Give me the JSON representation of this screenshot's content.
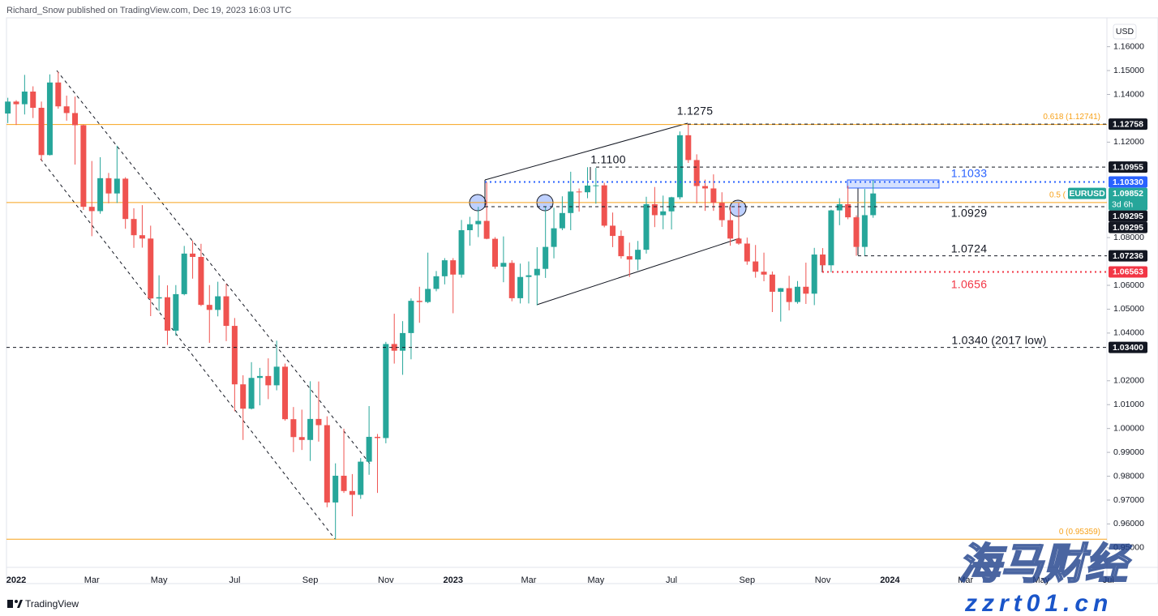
{
  "header": "Richard_Snow published on TradingView.com, Dec 19, 2023 16:03 UTC",
  "footer": "TradingView",
  "watermark": {
    "name": "海马财经",
    "site": "zzrt01.cn"
  },
  "chart_data": {
    "type": "candlestick",
    "currency": "USD",
    "up_color": "#26a69a",
    "down_color": "#ef5350",
    "fib_color": "#f7a21b",
    "grid": false,
    "ylim": [
      0.9418,
      1.1721
    ],
    "yticks": [
      {
        "value": 1.16,
        "label": "1.16000"
      },
      {
        "value": 1.15,
        "label": "1.15000"
      },
      {
        "value": 1.14,
        "label": "1.14000"
      },
      {
        "value": 1.12,
        "label": "1.12000"
      },
      {
        "value": 1.08,
        "label": "1.08000"
      },
      {
        "value": 1.06,
        "label": "1.06000"
      },
      {
        "value": 1.05,
        "label": "1.05000"
      },
      {
        "value": 1.04,
        "label": "1.04000"
      },
      {
        "value": 1.02,
        "label": "1.02000"
      },
      {
        "value": 1.01,
        "label": "1.01000"
      },
      {
        "value": 1.0,
        "label": "1.00000"
      },
      {
        "value": 0.99,
        "label": "0.99000"
      },
      {
        "value": 0.98,
        "label": "0.98000"
      },
      {
        "value": 0.97,
        "label": "0.97000"
      },
      {
        "value": 0.96,
        "label": "0.96000"
      },
      {
        "value": 0.95,
        "label": "0.95000"
      }
    ],
    "categories": [
      null,
      "2022",
      null,
      null,
      null,
      null,
      null,
      null,
      null,
      null,
      "Mar",
      null,
      null,
      null,
      null,
      null,
      null,
      null,
      "May",
      null,
      null,
      null,
      null,
      null,
      null,
      null,
      null,
      "Jul",
      null,
      null,
      null,
      null,
      null,
      null,
      null,
      null,
      "Sep",
      null,
      null,
      null,
      null,
      null,
      null,
      null,
      null,
      "Nov",
      null,
      null,
      null,
      null,
      null,
      null,
      null,
      "2023",
      null,
      null,
      null,
      null,
      null,
      null,
      null,
      null,
      "Mar",
      null,
      null,
      null,
      null,
      null,
      null,
      null,
      "May",
      null,
      null,
      null,
      null,
      null,
      null,
      null,
      null,
      "Jul",
      null,
      null,
      null,
      null,
      null,
      null,
      null,
      null,
      "Sep",
      null,
      null,
      null,
      null,
      null,
      null,
      null,
      null,
      "Nov",
      null,
      null,
      null,
      null,
      null,
      null,
      null,
      "2024",
      null,
      null,
      null,
      null,
      null,
      null,
      null,
      null,
      "Mar",
      null,
      null,
      null,
      null,
      null,
      null,
      null,
      null,
      "May",
      null,
      null,
      null,
      null,
      null,
      null,
      null,
      "Jul"
    ],
    "open": [
      1.132,
      1.137,
      1.1359,
      1.1412,
      1.1344,
      1.1146,
      1.145,
      1.135,
      1.1322,
      1.1271,
      1.0929,
      1.0911,
      1.1049,
      1.0985,
      1.1047,
      1.0878,
      1.081,
      1.0796,
      1.0545,
      1.055,
      1.041,
      1.0563,
      1.0733,
      1.0719,
      1.0518,
      1.0497,
      1.0554,
      1.043,
      1.0185,
      1.0083,
      1.0212,
      1.022,
      1.0181,
      1.0259,
      1.0039,
      0.9964,
      0.9952,
      1.004,
      1.0014,
      0.969,
      0.9802,
      0.9738,
      0.9722,
      0.9861,
      0.9965,
      0.996,
      1.0354,
      1.0326,
      1.04,
      1.0535,
      1.053,
      1.0585,
      1.0638,
      1.0705,
      1.0645,
      1.0831,
      1.0856,
      1.087,
      1.0795,
      1.0678,
      1.0694,
      1.0546,
      1.0635,
      1.0642,
      1.0669,
      1.0761,
      1.0839,
      1.0903,
      1.0993,
      1.099,
      1.1018,
      1.1019,
      1.085,
      1.0807,
      1.0722,
      1.0708,
      1.0749,
      1.094,
      1.0894,
      1.091,
      1.0969,
      1.1229,
      1.1125,
      1.1016,
      1.1006,
      1.0946,
      1.0873,
      1.0796,
      1.0775,
      1.07,
      1.0657,
      1.0645,
      1.0573,
      1.0588,
      1.053,
      1.0594,
      1.0565,
      1.0729,
      1.0684,
      1.0914,
      1.094,
      1.0885,
      1.0761,
      1.0894,
      null,
      null,
      null,
      null,
      null,
      null,
      null,
      null,
      null,
      null,
      null,
      null,
      null,
      null,
      null,
      null,
      null,
      null,
      null,
      null,
      null,
      null,
      null,
      null,
      null,
      null,
      null,
      null
    ],
    "high": [
      1.1386,
      1.1376,
      1.1482,
      1.1434,
      1.137,
      1.1484,
      1.1495,
      1.1395,
      1.1391,
      1.1274,
      1.1121,
      1.1137,
      1.1071,
      1.1185,
      1.1053,
      1.0923,
      1.0936,
      1.085,
      1.0642,
      1.06,
      1.0601,
      1.0765,
      1.0787,
      1.0774,
      1.0601,
      1.0615,
      1.0606,
      1.0463,
      1.0223,
      1.0278,
      1.0254,
      1.0294,
      1.0368,
      1.0272,
      1.009,
      1.0079,
      1.0198,
      1.0197,
      1.0051,
      0.9854,
      0.9999,
      0.9809,
      0.9876,
      1.0094,
      0.9977,
      1.0363,
      1.0481,
      1.045,
      1.0545,
      1.0594,
      1.0737,
      1.066,
      1.0714,
      1.0714,
      1.0874,
      1.0887,
      1.0929,
      1.1033,
      1.0802,
      1.0805,
      1.0705,
      1.0691,
      1.07,
      1.076,
      1.093,
      1.0925,
      1.0973,
      1.1076,
      1.1006,
      1.1095,
      1.1092,
      1.103,
      1.0905,
      1.083,
      1.0779,
      1.0786,
      1.0971,
      1.1012,
      1.0976,
      1.0971,
      1.1245,
      1.1275,
      1.1149,
      1.1043,
      1.1065,
      1.099,
      1.093,
      1.0945,
      1.08,
      1.0769,
      1.0737,
      1.0658,
      1.0589,
      1.064,
      1.0618,
      1.0695,
      1.0757,
      1.0756,
      1.0917,
      1.0965,
      1.1017,
      1.0893,
      1.1004,
      1.104,
      null,
      null,
      null,
      null,
      null,
      null,
      null,
      null,
      null,
      null,
      null,
      null,
      null,
      null,
      null,
      null,
      null,
      null,
      null,
      null,
      null,
      null,
      null,
      null,
      null,
      null,
      null,
      null
    ],
    "low": [
      1.128,
      1.1272,
      1.1316,
      1.1301,
      1.1121,
      1.1144,
      1.134,
      1.129,
      1.1106,
      1.0916,
      1.0806,
      1.09,
      1.0944,
      1.0945,
      1.0837,
      1.0757,
      1.0758,
      1.0471,
      1.0493,
      1.035,
      1.0389,
      1.0558,
      1.0628,
      1.0513,
      1.0359,
      1.047,
      1.0366,
      1.0072,
      0.9952,
      1.008,
      1.0097,
      1.0123,
      1.016,
      1.0033,
      0.9901,
      0.991,
      0.9864,
      0.9945,
      0.967,
      0.9535,
      0.973,
      0.9632,
      0.9705,
      0.9806,
      0.973,
      0.9938,
      1.0272,
      1.0225,
      1.029,
      1.0443,
      1.0525,
      1.0575,
      1.0604,
      1.0483,
      1.0632,
      1.0766,
      1.0802,
      1.0793,
      1.0669,
      1.0613,
      1.0533,
      1.0524,
      1.0524,
      1.0516,
      1.0631,
      1.0713,
      1.0831,
      1.0831,
      1.0909,
      1.0965,
      1.0942,
      1.0843,
      1.076,
      1.0712,
      1.0635,
      1.0663,
      1.0733,
      1.0844,
      1.0835,
      1.0834,
      1.096,
      1.1113,
      1.0943,
      1.0912,
      1.0912,
      1.0845,
      1.0766,
      1.077,
      1.0686,
      1.0632,
      1.0617,
      1.0488,
      1.0448,
      1.0495,
      1.0523,
      1.0522,
      1.0517,
      1.0656,
      1.0655,
      1.0852,
      1.0877,
      1.0724,
      1.0723,
      1.0883,
      null,
      null,
      null,
      null,
      null,
      null,
      null,
      null,
      null,
      null,
      null,
      null,
      null,
      null,
      null,
      null,
      null,
      null,
      null,
      null,
      null,
      null,
      null,
      null,
      null,
      null,
      null,
      null
    ],
    "close": [
      1.137,
      1.1359,
      1.1412,
      1.1344,
      1.1146,
      1.145,
      1.135,
      1.1322,
      1.1271,
      1.0929,
      1.0911,
      1.1049,
      1.0985,
      1.1047,
      1.0878,
      1.081,
      1.0796,
      1.0545,
      1.055,
      1.041,
      1.0563,
      1.0733,
      1.0719,
      1.0518,
      1.0497,
      1.0554,
      1.043,
      1.0185,
      1.0083,
      1.0212,
      1.022,
      1.0181,
      1.0259,
      1.0039,
      0.9964,
      0.9952,
      1.004,
      1.0014,
      0.969,
      0.9802,
      0.9738,
      0.9722,
      0.9861,
      0.9965,
      0.996,
      1.0354,
      1.0326,
      1.04,
      1.0535,
      1.053,
      1.0585,
      1.0638,
      1.0705,
      1.0645,
      1.0831,
      1.0856,
      1.087,
      1.0795,
      1.0678,
      1.0694,
      1.0546,
      1.0635,
      1.0642,
      1.0669,
      1.0761,
      1.0839,
      1.0903,
      1.0993,
      1.099,
      1.1018,
      1.1019,
      1.085,
      1.0807,
      1.0722,
      1.0708,
      1.0749,
      1.094,
      1.0894,
      1.091,
      1.0969,
      1.1229,
      1.1125,
      1.1016,
      1.1006,
      1.0946,
      1.0873,
      1.0796,
      1.0775,
      1.07,
      1.0657,
      1.0645,
      1.0573,
      1.0588,
      1.053,
      1.0594,
      1.0565,
      1.0729,
      1.0684,
      1.0914,
      1.094,
      1.0885,
      1.0761,
      1.0894,
      1.0985,
      null,
      null,
      null,
      null,
      null,
      null,
      null,
      null,
      null,
      null,
      null,
      null,
      null,
      null,
      null,
      null,
      null,
      null,
      null,
      null,
      null,
      null,
      null,
      null,
      null,
      null,
      null,
      null
    ],
    "fib_levels": [
      {
        "value": 1.12741,
        "label": "0.618 (1.12741)"
      },
      {
        "value": 1.0947,
        "label": "0.5 ("
      },
      {
        "value": 0.95359,
        "label": "0 (0.95359)"
      }
    ],
    "levels": [
      {
        "value": 1.12758,
        "label": "1.12758",
        "color": "#131722",
        "style": "dashed"
      },
      {
        "value": 1.10955,
        "label": "1.10955",
        "color": "#131722",
        "style": "dashed"
      },
      {
        "value": 1.1033,
        "label": "1.10330",
        "color": "#2962ff",
        "style": "dotted"
      },
      {
        "value": 1.09295,
        "label": "1.09295",
        "color": "#131722",
        "style": "dashed"
      },
      {
        "value": 1.09295,
        "label": "1.09295",
        "color": "#131722",
        "style": "dashed"
      },
      {
        "value": 1.07236,
        "label": "1.07236",
        "color": "#131722",
        "style": "dashed"
      },
      {
        "value": 1.06563,
        "label": "1.06563",
        "color": "#f23645",
        "style": "dotted"
      },
      {
        "value": 1.034,
        "label": "1.03400",
        "color": "#131722",
        "style": "dashed"
      }
    ],
    "last_price": {
      "symbol": "EURUSD",
      "value": 1.09852,
      "label": "1.09852",
      "countdown": "3d 6h",
      "color": "#26a69a"
    },
    "annotations": [
      "1.1275",
      "1.1100",
      "1.1033",
      "1.0929",
      "1.0724",
      "1.0656",
      "1.0340 (2017 low)"
    ]
  }
}
